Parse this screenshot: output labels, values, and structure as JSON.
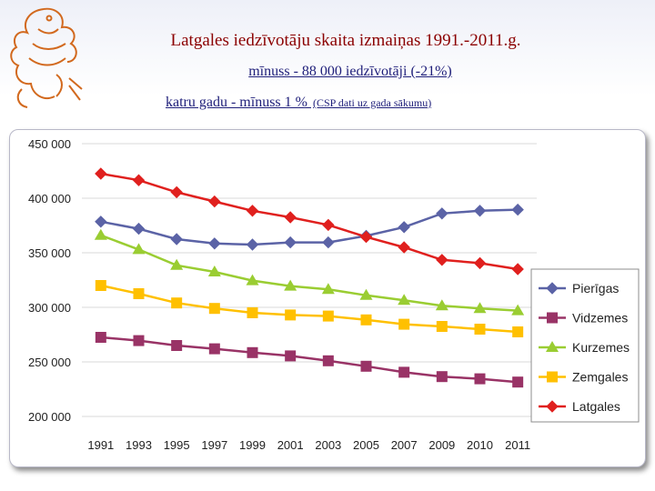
{
  "header": {
    "title": "Latgales iedzīvotāju skaita izmaiņas 1991.-2011.g.",
    "subtitle_line1": "mīnuss - 88 000 iedzīvotāji (-21%)",
    "subtitle_line2_main": "katru gadu - mīnuss 1 % ",
    "subtitle_line2_note": "(CSP dati uz gada sākumu)"
  },
  "colors": {
    "title": "#8b0000",
    "subtitle": "#1f1f7a",
    "emblem": "#d2691e"
  },
  "chart_data": {
    "type": "line",
    "categories": [
      "1991",
      "1993",
      "1995",
      "1997",
      "1999",
      "2001",
      "2003",
      "2005",
      "2007",
      "2009",
      "2010",
      "2011"
    ],
    "ylim": [
      200000,
      450000
    ],
    "yticks": [
      200000,
      250000,
      300000,
      350000,
      400000,
      450000
    ],
    "ytick_labels": [
      "200 000",
      "250 000",
      "300 000",
      "350 000",
      "400 000",
      "450 000"
    ],
    "grid": true,
    "legend_position": "right",
    "series": [
      {
        "name": "Pierīgas",
        "color": "#5b63a6",
        "marker": "diamond",
        "values": [
          378500,
          372000,
          362500,
          358500,
          357500,
          359500,
          359500,
          365500,
          373500,
          386000,
          388500,
          389500
        ]
      },
      {
        "name": "Vidzemes",
        "color": "#993366",
        "marker": "square",
        "values": [
          272500,
          269500,
          265000,
          262000,
          258500,
          255500,
          251000,
          246000,
          240500,
          236500,
          234500,
          231500
        ]
      },
      {
        "name": "Kurzemes",
        "color": "#9acd32",
        "marker": "triangle",
        "values": [
          366000,
          353000,
          338500,
          332500,
          324500,
          319500,
          316500,
          311000,
          306500,
          301500,
          299000,
          297000
        ]
      },
      {
        "name": "Zemgales",
        "color": "#ffc000",
        "marker": "square",
        "values": [
          320000,
          312500,
          304000,
          299000,
          295000,
          293000,
          292000,
          288500,
          284500,
          282500,
          280000,
          277500
        ]
      },
      {
        "name": "Latgales",
        "color": "#e0201e",
        "marker": "diamond",
        "values": [
          422500,
          416500,
          405500,
          397000,
          388500,
          382500,
          375500,
          364500,
          355000,
          343500,
          340500,
          335000
        ]
      }
    ]
  }
}
